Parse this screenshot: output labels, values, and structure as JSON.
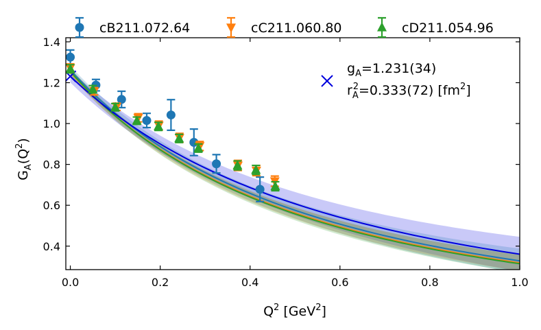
{
  "chart_data": {
    "type": "scatter",
    "xlabel": "Q²  [GeV²]",
    "ylabel": "G_A(Q²)",
    "xlim": [
      -0.01,
      1.0
    ],
    "ylim": [
      0.285,
      1.42
    ],
    "xticks": [
      0.0,
      0.2,
      0.4,
      0.6,
      0.8,
      1.0
    ],
    "yticks": [
      0.4,
      0.6,
      0.8,
      1.0,
      1.2,
      1.4
    ],
    "legend_position": "top, above plot",
    "series": [
      {
        "name": "cB211.072.64",
        "color": "#1f77b4",
        "marker": "circle",
        "points": [
          {
            "x": 0.0,
            "y": 1.325,
            "err": 0.035
          },
          {
            "x": 0.057,
            "y": 1.188,
            "err": 0.028
          },
          {
            "x": 0.114,
            "y": 1.118,
            "err": 0.04
          },
          {
            "x": 0.17,
            "y": 1.015,
            "err": 0.035
          },
          {
            "x": 0.224,
            "y": 1.042,
            "err": 0.075
          },
          {
            "x": 0.275,
            "y": 0.908,
            "err": 0.065
          },
          {
            "x": 0.325,
            "y": 0.803,
            "err": 0.045
          },
          {
            "x": 0.422,
            "y": 0.678,
            "err": 0.06
          }
        ]
      },
      {
        "name": "cC211.060.80",
        "color": "#ff7f0e",
        "marker": "triangle-down",
        "points": [
          {
            "x": 0.0,
            "y": 1.272,
            "err": 0.02
          },
          {
            "x": 0.053,
            "y": 1.158,
            "err": 0.018
          },
          {
            "x": 0.103,
            "y": 1.082,
            "err": 0.018
          },
          {
            "x": 0.151,
            "y": 1.028,
            "err": 0.02
          },
          {
            "x": 0.197,
            "y": 0.99,
            "err": 0.022
          },
          {
            "x": 0.243,
            "y": 0.93,
            "err": 0.022
          },
          {
            "x": 0.288,
            "y": 0.89,
            "err": 0.022
          },
          {
            "x": 0.373,
            "y": 0.795,
            "err": 0.025
          },
          {
            "x": 0.414,
            "y": 0.77,
            "err": 0.025
          },
          {
            "x": 0.455,
            "y": 0.718,
            "err": 0.025
          }
        ]
      },
      {
        "name": "cD211.054.96",
        "color": "#2ca02c",
        "marker": "triangle-up",
        "points": [
          {
            "x": 0.0,
            "y": 1.268,
            "err": 0.02
          },
          {
            "x": 0.05,
            "y": 1.168,
            "err": 0.018
          },
          {
            "x": 0.1,
            "y": 1.08,
            "err": 0.018
          },
          {
            "x": 0.148,
            "y": 1.014,
            "err": 0.018
          },
          {
            "x": 0.196,
            "y": 0.986,
            "err": 0.02
          },
          {
            "x": 0.242,
            "y": 0.927,
            "err": 0.02
          },
          {
            "x": 0.285,
            "y": 0.88,
            "err": 0.02
          },
          {
            "x": 0.372,
            "y": 0.795,
            "err": 0.022
          },
          {
            "x": 0.413,
            "y": 0.773,
            "err": 0.022
          },
          {
            "x": 0.456,
            "y": 0.693,
            "err": 0.022
          }
        ]
      }
    ],
    "fits": [
      {
        "color": "#1f77b4",
        "g0": 1.262,
        "mass2": 1.04,
        "band_lo": 0.02,
        "band_hi": 0.06
      },
      {
        "color": "#ff7f0e",
        "g0": 1.252,
        "mass2": 1.015,
        "band_lo": 0.018,
        "band_hi": 0.04
      },
      {
        "color": "#2ca02c",
        "g0": 1.255,
        "mass2": 1.0,
        "band_lo": 0.018,
        "band_hi": 0.045
      }
    ],
    "continuum_fit": {
      "color": "#0000dd",
      "band_color": "#b7b7f5",
      "g0": 1.231,
      "mass2": 1.18,
      "band_lo": 0.03,
      "band_hi": 0.085,
      "x_marker": {
        "x": 0.0,
        "y": 1.231
      }
    },
    "annotation_ga": "gA=1.231(34)",
    "annotation_ra": "r²A=0.333(72) [fm²]"
  }
}
